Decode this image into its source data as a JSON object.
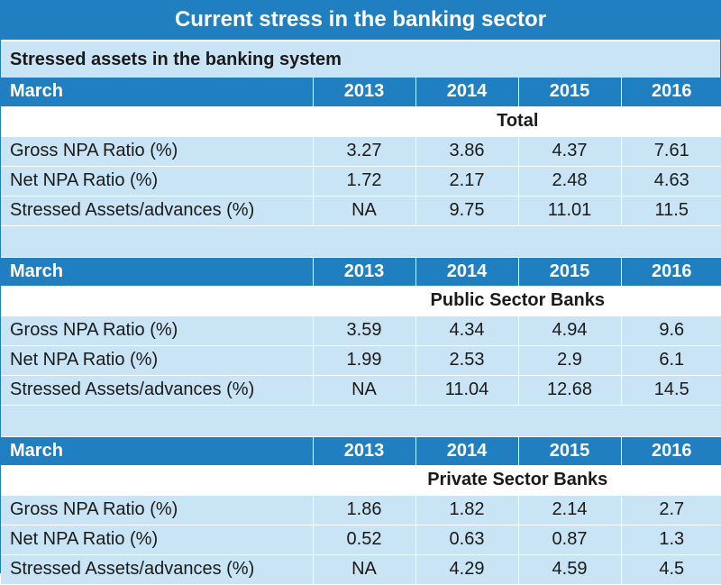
{
  "title": "Current stress in the banking sector",
  "subtitle": "Stressed assets in the banking system",
  "chart_data": {
    "type": "table",
    "columns": [
      "March",
      "2013",
      "2014",
      "2015",
      "2016"
    ],
    "groups": [
      {
        "name": "Total",
        "rows": [
          {
            "metric": "Gross NPA Ratio (%)",
            "values": [
              "3.27",
              "3.86",
              "4.37",
              "7.61"
            ]
          },
          {
            "metric": "Net NPA Ratio (%)",
            "values": [
              "1.72",
              "2.17",
              "2.48",
              "4.63"
            ]
          },
          {
            "metric": "Stressed Assets/advances (%)",
            "values": [
              "NA",
              "9.75",
              "11.01",
              "11.5"
            ]
          }
        ]
      },
      {
        "name": "Public Sector Banks",
        "rows": [
          {
            "metric": "Gross NPA Ratio (%)",
            "values": [
              "3.59",
              "4.34",
              "4.94",
              "9.6"
            ]
          },
          {
            "metric": "Net NPA Ratio (%)",
            "values": [
              "1.99",
              "2.53",
              "2.9",
              "6.1"
            ]
          },
          {
            "metric": "Stressed Assets/advances (%)",
            "values": [
              "NA",
              "11.04",
              "12.68",
              "14.5"
            ]
          }
        ]
      },
      {
        "name": "Private Sector Banks",
        "rows": [
          {
            "metric": "Gross NPA Ratio (%)",
            "values": [
              "1.86",
              "1.82",
              "2.14",
              "2.7"
            ]
          },
          {
            "metric": "Net NPA Ratio (%)",
            "values": [
              "0.52",
              "0.63",
              "0.87",
              "1.3"
            ]
          },
          {
            "metric": "Stressed Assets/advances (%)",
            "values": [
              "NA",
              "4.29",
              "4.59",
              "4.5"
            ]
          }
        ]
      }
    ]
  },
  "colors": {
    "header_blue": "#1f7fc0",
    "row_light_blue": "#c9e5f5",
    "white": "#ffffff"
  }
}
